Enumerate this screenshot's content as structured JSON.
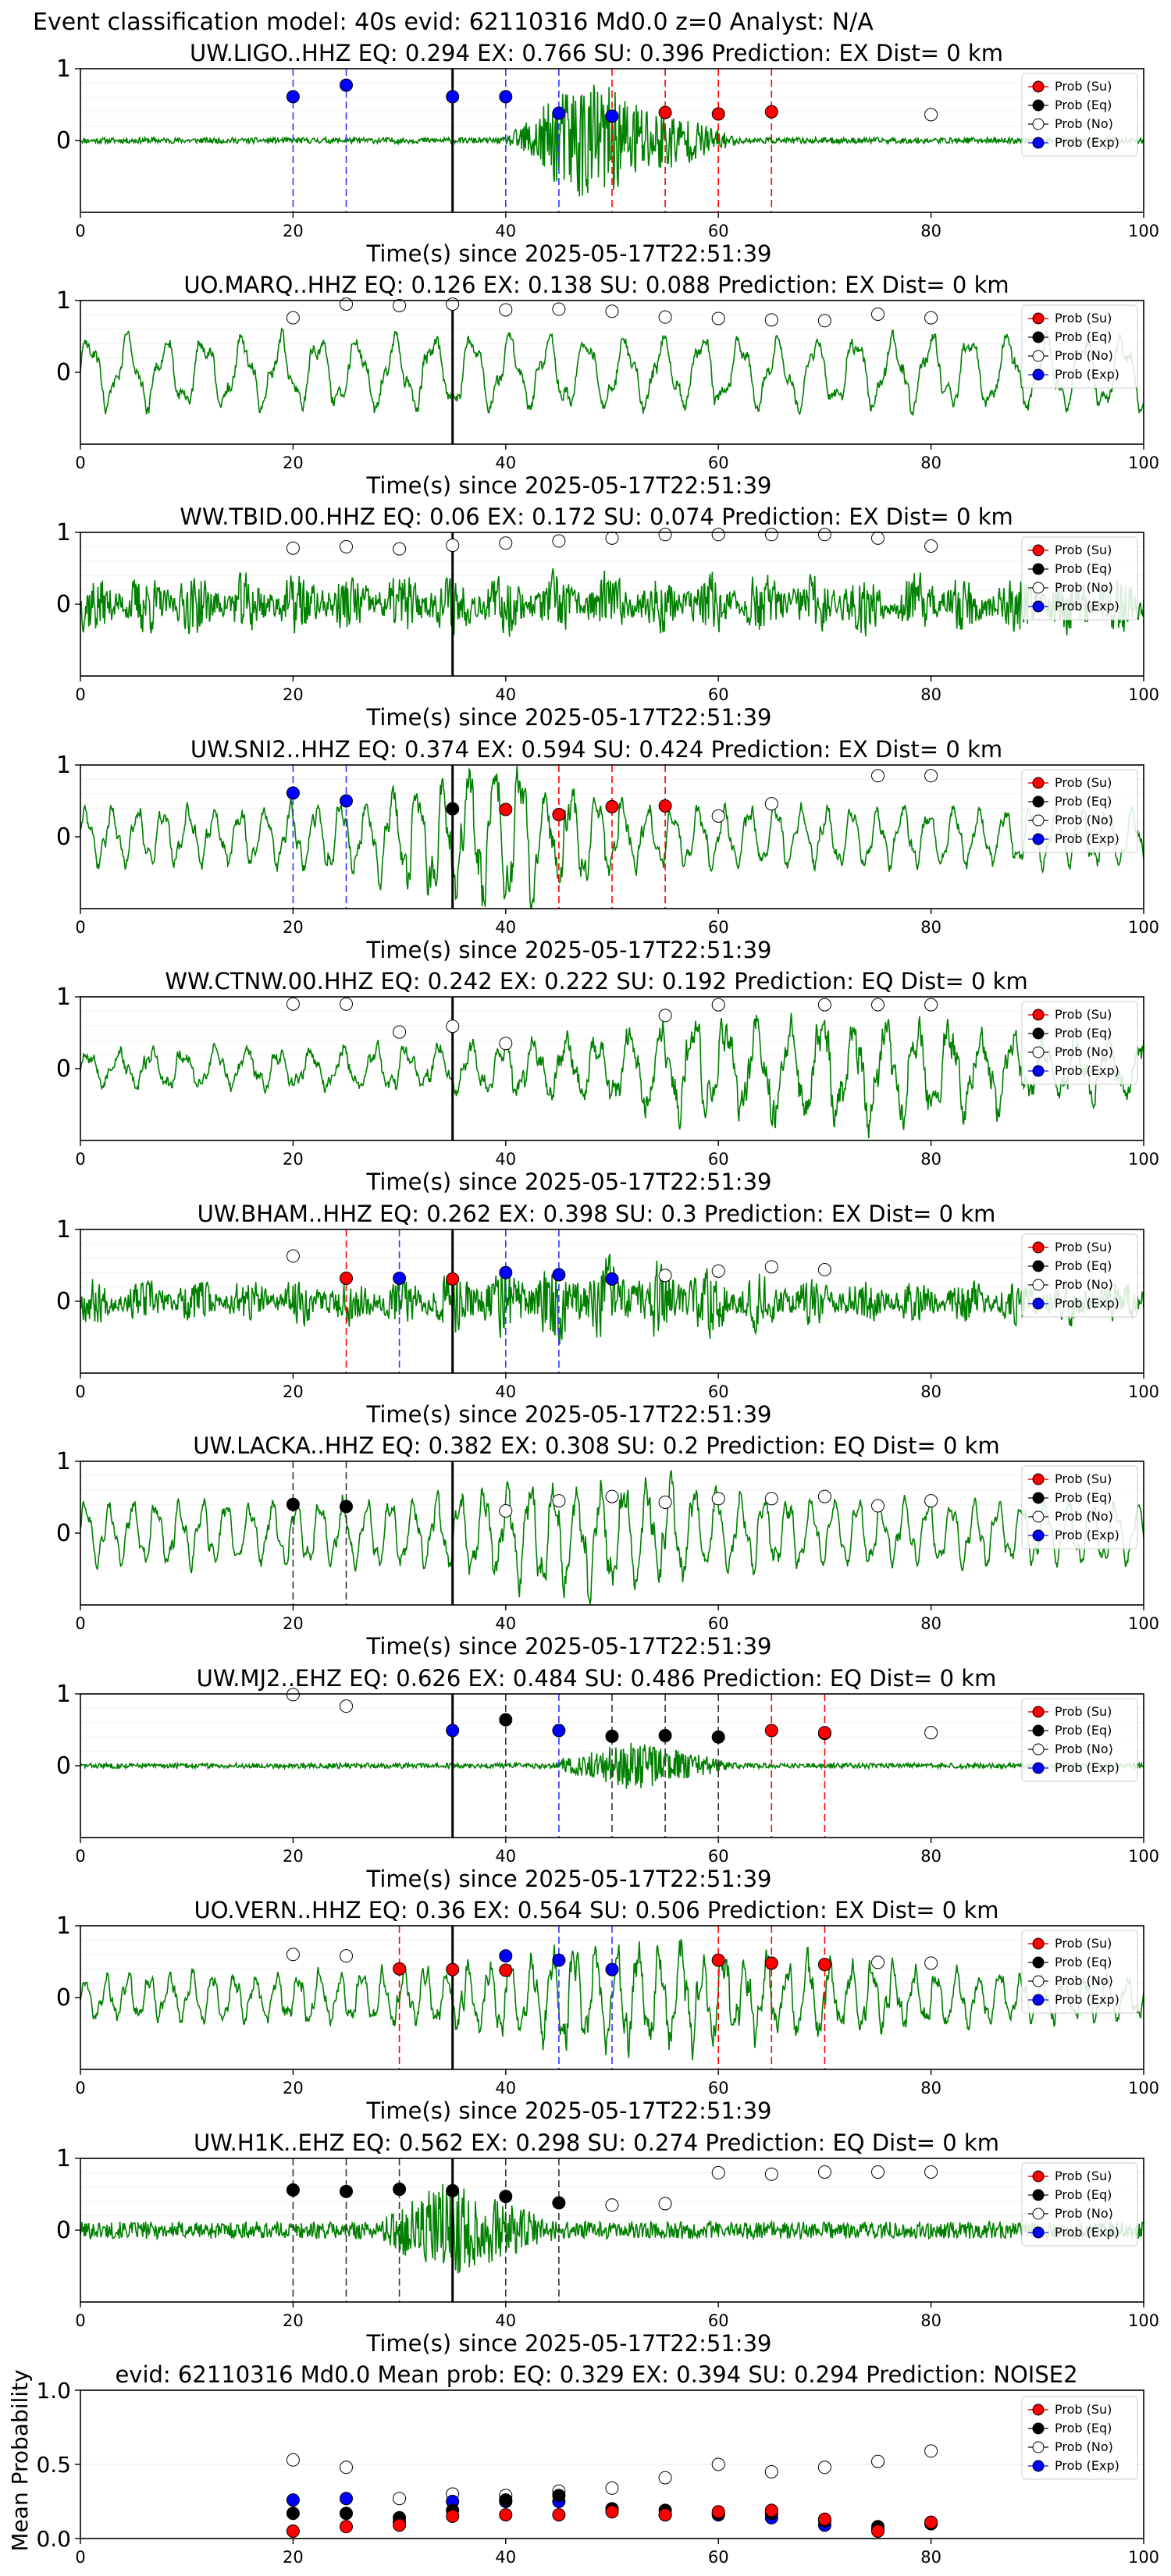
{
  "suptitle": "Event classification model: 40s evid: 62110316 Md0.0 z=0 Analyst: N/A",
  "colors": {
    "waveform": "#008000",
    "su": "#ff0000",
    "eq": "#000000",
    "no": "#ffffff",
    "exp": "#0000ff",
    "line_su": "#ff0000",
    "line_eq": "#333333",
    "line_exp": "#3333ff"
  },
  "legend": [
    "Prob (Su)",
    "Prob (Eq)",
    "Prob (No)",
    "Prob (Exp)"
  ],
  "chart_data": [
    {
      "type": "line",
      "title": "UW.LIGO..HHZ   EQ: 0.294   EX: 0.766   SU: 0.396    Prediction: EX     Dist= 0 km",
      "xlabel": "Time(s) since 2025-05-17T22:51:39",
      "xlim": [
        0,
        100
      ],
      "xticks": [
        "0",
        "20",
        "40",
        "60",
        "80",
        "100"
      ],
      "ylim": [
        -1,
        1
      ],
      "yticks": [
        "1",
        "0"
      ],
      "origin_time": 35,
      "wave": {
        "style": "burst",
        "base": 0.04,
        "peak": 0.9,
        "start": 40,
        "center": 47,
        "end": 62,
        "seed": 11
      },
      "series": [
        {
          "name": "Prob (Exp)",
          "x": [
            20,
            25,
            35,
            40,
            45,
            50
          ],
          "y": [
            0.61,
            0.77,
            0.61,
            0.61,
            0.38,
            0.34
          ]
        },
        {
          "name": "Prob (Su)",
          "x": [
            55,
            60,
            65
          ],
          "y": [
            0.39,
            0.37,
            0.4
          ]
        },
        {
          "name": "Prob (No)",
          "x": [
            80
          ],
          "y": [
            0.36
          ]
        }
      ],
      "vlines": [
        {
          "class": "exp",
          "x": [
            20,
            25,
            40,
            45
          ]
        },
        {
          "class": "su",
          "x": [
            50,
            55,
            60,
            65
          ]
        }
      ]
    },
    {
      "type": "line",
      "title": "UO.MARQ..HHZ   EQ: 0.126   EX: 0.138   SU: 0.088   Prediction: EX    Dist= 0 km",
      "xlabel": "Time(s) since 2025-05-17T22:51:39",
      "xlim": [
        0,
        100
      ],
      "xticks": [
        "0",
        "20",
        "40",
        "60",
        "80",
        "100"
      ],
      "ylim": [
        -1,
        1
      ],
      "yticks": [
        "1",
        "0"
      ],
      "origin_time": 35,
      "wave": {
        "style": "oscillation",
        "base": 0.55,
        "period": 3.6,
        "seed": 23
      },
      "series": [
        {
          "name": "Prob (No)",
          "x": [
            20,
            25,
            30,
            35,
            40,
            45,
            50,
            55,
            60,
            65,
            70,
            75,
            80
          ],
          "y": [
            0.76,
            0.95,
            0.93,
            0.95,
            0.87,
            0.88,
            0.85,
            0.77,
            0.75,
            0.73,
            0.72,
            0.81,
            0.76
          ]
        }
      ],
      "vlines": []
    },
    {
      "type": "line",
      "title": "WW.TBID.00.HHZ   EQ: 0.06   EX: 0.172   SU: 0.074   Prediction: EX    Dist= 0 km",
      "xlabel": "Time(s) since 2025-05-17T22:51:39",
      "xlim": [
        0,
        100
      ],
      "xticks": [
        "0",
        "20",
        "40",
        "60",
        "80",
        "100"
      ],
      "ylim": [
        -1,
        1
      ],
      "yticks": [
        "1",
        "0"
      ],
      "origin_time": 35,
      "wave": {
        "style": "noise",
        "base": 0.55,
        "seed": 37
      },
      "series": [
        {
          "name": "Prob (No)",
          "x": [
            20,
            25,
            30,
            35,
            40,
            45,
            50,
            55,
            60,
            65,
            70,
            75,
            80
          ],
          "y": [
            0.78,
            0.8,
            0.77,
            0.82,
            0.85,
            0.88,
            0.92,
            0.97,
            0.97,
            0.97,
            0.97,
            0.92,
            0.81
          ]
        }
      ],
      "vlines": []
    },
    {
      "type": "line",
      "title": "UW.SNI2..HHZ   EQ: 0.374   EX: 0.594   SU: 0.424   Prediction: EX    Dist= 0 km",
      "xlabel": "Time(s) since 2025-05-17T22:51:39",
      "xlim": [
        0,
        100
      ],
      "xticks": [
        "0",
        "20",
        "40",
        "60",
        "80",
        "100"
      ],
      "ylim": [
        -1,
        1
      ],
      "yticks": [
        "1",
        "0"
      ],
      "origin_time": 35,
      "wave": {
        "style": "oscillation",
        "base": 0.45,
        "period": 2.4,
        "burst": 0.55,
        "bcenter": 38,
        "bwidth": 10,
        "seed": 41
      },
      "series": [
        {
          "name": "Prob (Exp)",
          "x": [
            20,
            25
          ],
          "y": [
            0.61,
            0.5
          ]
        },
        {
          "name": "Prob (Eq)",
          "x": [
            35
          ],
          "y": [
            0.39
          ]
        },
        {
          "name": "Prob (Su)",
          "x": [
            40,
            45,
            50,
            55
          ],
          "y": [
            0.38,
            0.31,
            0.42,
            0.43
          ]
        },
        {
          "name": "Prob (No)",
          "x": [
            60,
            65,
            75,
            80
          ],
          "y": [
            0.29,
            0.46,
            0.85,
            0.85
          ]
        }
      ],
      "vlines": [
        {
          "class": "exp",
          "x": [
            20,
            25
          ]
        },
        {
          "class": "su",
          "x": [
            45,
            50,
            55
          ]
        }
      ]
    },
    {
      "type": "line",
      "title": "WW.CTNW.00.HHZ   EQ: 0.242   EX: 0.222   SU: 0.192   Prediction: EQ    Dist= 0 km",
      "xlabel": "Time(s) since 2025-05-17T22:51:39",
      "xlim": [
        0,
        100
      ],
      "xticks": [
        "0",
        "20",
        "40",
        "60",
        "80",
        "100"
      ],
      "ylim": [
        -1,
        1
      ],
      "yticks": [
        "1",
        "0"
      ],
      "origin_time": 35,
      "wave": {
        "style": "oscillation",
        "base": 0.3,
        "period": 3.0,
        "burst": 0.45,
        "bcenter": 70,
        "bwidth": 25,
        "seed": 53
      },
      "series": [
        {
          "name": "Prob (No)",
          "x": [
            20,
            25,
            30,
            35,
            40,
            55,
            60,
            70,
            75,
            80
          ],
          "y": [
            0.9,
            0.9,
            0.51,
            0.59,
            0.35,
            0.74,
            0.89,
            0.89,
            0.89,
            0.89
          ]
        }
      ],
      "vlines": []
    },
    {
      "type": "line",
      "title": "UW.BHAM..HHZ   EQ: 0.262   EX: 0.398   SU: 0.3   Prediction: EX    Dist= 0 km",
      "xlabel": "Time(s) since 2025-05-17T22:51:39",
      "xlim": [
        0,
        100
      ],
      "xticks": [
        "0",
        "20",
        "40",
        "60",
        "80",
        "100"
      ],
      "ylim": [
        -1,
        1
      ],
      "yticks": [
        "1",
        "0"
      ],
      "origin_time": 35,
      "wave": {
        "style": "noise",
        "base": 0.4,
        "burst": 0.35,
        "bcenter": 48,
        "bwidth": 14,
        "seed": 67
      },
      "series": [
        {
          "name": "Prob (No)",
          "x": [
            20,
            55,
            60,
            65,
            70
          ],
          "y": [
            0.63,
            0.36,
            0.42,
            0.48,
            0.44
          ]
        },
        {
          "name": "Prob (Su)",
          "x": [
            25,
            35
          ],
          "y": [
            0.32,
            0.31
          ]
        },
        {
          "name": "Prob (Exp)",
          "x": [
            30,
            40,
            45,
            50
          ],
          "y": [
            0.32,
            0.4,
            0.37,
            0.31
          ]
        }
      ],
      "vlines": [
        {
          "class": "su",
          "x": [
            25
          ]
        },
        {
          "class": "exp",
          "x": [
            30,
            40,
            45
          ]
        }
      ]
    },
    {
      "type": "line",
      "title": "UW.LACKA..HHZ   EQ: 0.382   EX: 0.308   SU: 0.2   Prediction: EQ    Dist= 0 km",
      "xlabel": "Time(s) since 2025-05-17T22:51:39",
      "xlim": [
        0,
        100
      ],
      "xticks": [
        "0",
        "20",
        "40",
        "60",
        "80",
        "100"
      ],
      "ylim": [
        -1,
        1
      ],
      "yticks": [
        "1",
        "0"
      ],
      "origin_time": 35,
      "wave": {
        "style": "oscillation",
        "base": 0.5,
        "period": 2.2,
        "burst": 0.35,
        "bcenter": 48,
        "bwidth": 12,
        "seed": 71
      },
      "series": [
        {
          "name": "Prob (Eq)",
          "x": [
            20,
            25
          ],
          "y": [
            0.4,
            0.37
          ]
        },
        {
          "name": "Prob (No)",
          "x": [
            40,
            45,
            50,
            55,
            60,
            65,
            70,
            75,
            80
          ],
          "y": [
            0.31,
            0.45,
            0.51,
            0.43,
            0.48,
            0.48,
            0.51,
            0.38,
            0.45
          ]
        }
      ],
      "vlines": [
        {
          "class": "eq",
          "x": [
            20,
            25
          ]
        }
      ]
    },
    {
      "type": "line",
      "title": "UW.MJ2..EHZ   EQ: 0.626   EX: 0.484   SU: 0.486    Prediction: EQ     Dist= 0 km",
      "xlabel": "Time(s) since 2025-05-17T22:51:39",
      "xlim": [
        0,
        100
      ],
      "xticks": [
        "0",
        "20",
        "40",
        "60",
        "80",
        "100"
      ],
      "ylim": [
        -1,
        1
      ],
      "yticks": [
        "1",
        "0"
      ],
      "origin_time": 35,
      "wave": {
        "style": "burst",
        "base": 0.035,
        "peak": 0.35,
        "start": 44,
        "center": 52,
        "end": 62,
        "seed": 83
      },
      "series": [
        {
          "name": "Prob (No)",
          "x": [
            20,
            25,
            70,
            80
          ],
          "y": [
            0.99,
            0.83,
            0.45,
            0.46
          ]
        },
        {
          "name": "Prob (Exp)",
          "x": [
            35,
            45
          ],
          "y": [
            0.49,
            0.49
          ]
        },
        {
          "name": "Prob (Eq)",
          "x": [
            40,
            50,
            55,
            60
          ],
          "y": [
            0.64,
            0.41,
            0.42,
            0.4
          ]
        },
        {
          "name": "Prob (Su)",
          "x": [
            65,
            70
          ],
          "y": [
            0.49,
            0.46
          ]
        }
      ],
      "vlines": [
        {
          "class": "eq",
          "x": [
            40,
            50,
            55,
            60
          ]
        },
        {
          "class": "exp",
          "x": [
            45
          ]
        },
        {
          "class": "su",
          "x": [
            65,
            70
          ]
        }
      ]
    },
    {
      "type": "line",
      "title": "UO.VERN..HHZ   EQ: 0.36   EX: 0.564   SU: 0.506    Prediction: EX     Dist= 0 km",
      "xlabel": "Time(s) since 2025-05-17T22:51:39",
      "xlim": [
        0,
        100
      ],
      "xticks": [
        "0",
        "20",
        "40",
        "60",
        "80",
        "100"
      ],
      "ylim": [
        -1,
        1
      ],
      "yticks": [
        "1",
        "0"
      ],
      "origin_time": 35,
      "wave": {
        "style": "oscillation",
        "base": 0.35,
        "period": 2.0,
        "burst": 0.4,
        "bcenter": 55,
        "bwidth": 20,
        "seed": 97
      },
      "series": [
        {
          "name": "Prob (No)",
          "x": [
            20,
            25,
            75,
            80
          ],
          "y": [
            0.6,
            0.58,
            0.49,
            0.48
          ]
        },
        {
          "name": "Prob (Su)",
          "x": [
            30,
            35,
            40,
            60,
            65,
            70
          ],
          "y": [
            0.4,
            0.39,
            0.38,
            0.52,
            0.48,
            0.46
          ]
        },
        {
          "name": "Prob (Exp)",
          "x": [
            40,
            45,
            50
          ],
          "y": [
            0.58,
            0.52,
            0.39
          ]
        }
      ],
      "vlines": [
        {
          "class": "su",
          "x": [
            30,
            60,
            65,
            70
          ]
        },
        {
          "class": "exp",
          "x": [
            45,
            50
          ]
        }
      ]
    },
    {
      "type": "line",
      "title": "UW.H1K..EHZ   EQ: 0.562  EX: 0.298  SU: 0.274    Prediction: EQ    Dist= 0 km",
      "xlabel": "Time(s) since 2025-05-17T22:51:39",
      "xlim": [
        0,
        100
      ],
      "xticks": [
        "0",
        "20",
        "40",
        "60",
        "80",
        "100"
      ],
      "ylim": [
        -1,
        1
      ],
      "yticks": [
        "1",
        "0"
      ],
      "origin_time": 35,
      "wave": {
        "style": "burst",
        "base": 0.12,
        "peak": 0.7,
        "start": 28,
        "center": 34,
        "end": 45,
        "seed": 101
      },
      "series": [
        {
          "name": "Prob (Eq)",
          "x": [
            20,
            25,
            30,
            35,
            40,
            45
          ],
          "y": [
            0.56,
            0.54,
            0.57,
            0.55,
            0.47,
            0.38
          ]
        },
        {
          "name": "Prob (No)",
          "x": [
            50,
            55,
            60,
            65,
            70,
            75,
            80
          ],
          "y": [
            0.35,
            0.37,
            0.8,
            0.78,
            0.81,
            0.81,
            0.81
          ]
        }
      ],
      "vlines": [
        {
          "class": "eq",
          "x": [
            20,
            25,
            30,
            40,
            45
          ]
        }
      ]
    },
    {
      "type": "scatter",
      "title": "evid: 62110316  Md0.0   Mean prob:    EQ: 0.329   EX: 0.394   SU: 0.294    Prediction: NOISE2",
      "ylabel": "Mean Probability",
      "xlim": [
        0,
        100
      ],
      "xticks": [
        "0",
        "20",
        "40",
        "60",
        "80",
        "100"
      ],
      "ylim": [
        0,
        1
      ],
      "yticks": [
        "1.0",
        "0.5",
        "0.0"
      ],
      "grid": true,
      "series": [
        {
          "name": "Prob (No)",
          "x": [
            20,
            25,
            30,
            35,
            40,
            45,
            50,
            55,
            60,
            65,
            70,
            75,
            80
          ],
          "y": [
            0.53,
            0.48,
            0.27,
            0.3,
            0.29,
            0.32,
            0.34,
            0.41,
            0.5,
            0.45,
            0.48,
            0.52,
            0.59
          ]
        },
        {
          "name": "Prob (Exp)",
          "x": [
            20,
            25,
            30,
            35,
            40,
            45,
            50,
            55,
            60,
            65,
            70,
            75,
            80
          ],
          "y": [
            0.26,
            0.27,
            0.11,
            0.25,
            0.25,
            0.25,
            0.2,
            0.16,
            0.16,
            0.14,
            0.09,
            0.06,
            0.1
          ]
        },
        {
          "name": "Prob (Eq)",
          "x": [
            20,
            25,
            30,
            35,
            40,
            45,
            50,
            55,
            60,
            65,
            70,
            75,
            80
          ],
          "y": [
            0.17,
            0.17,
            0.14,
            0.19,
            0.26,
            0.29,
            0.2,
            0.19,
            0.17,
            0.17,
            0.12,
            0.08,
            0.1
          ]
        },
        {
          "name": "Prob (Su)",
          "x": [
            20,
            25,
            30,
            35,
            40,
            45,
            50,
            55,
            60,
            65,
            70,
            75,
            80
          ],
          "y": [
            0.05,
            0.08,
            0.09,
            0.15,
            0.16,
            0.16,
            0.18,
            0.16,
            0.18,
            0.19,
            0.13,
            0.05,
            0.11
          ]
        }
      ]
    }
  ]
}
